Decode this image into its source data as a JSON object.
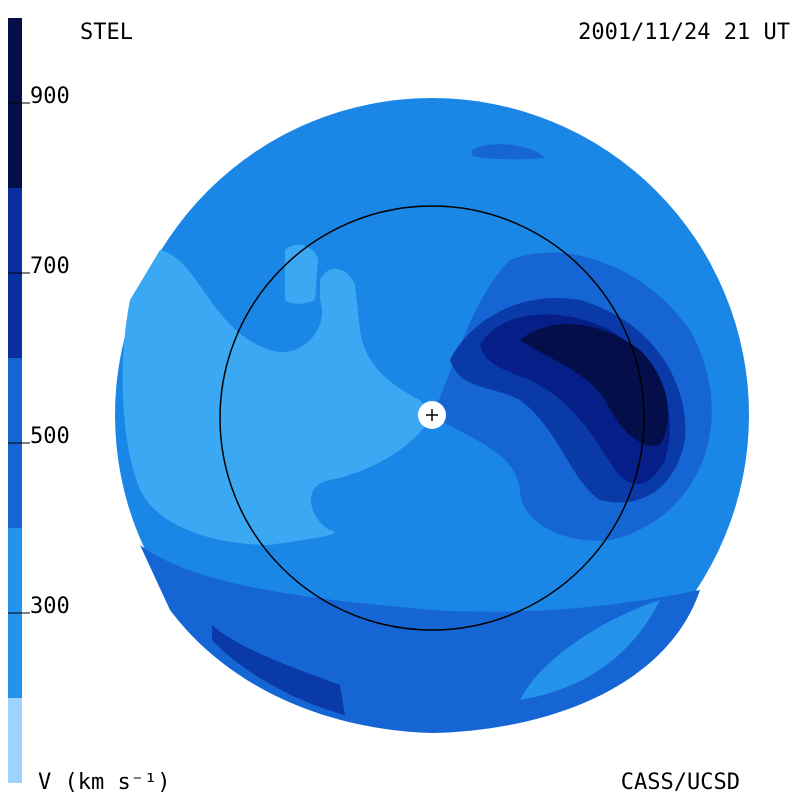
{
  "header": {
    "left": "STEL",
    "right": "2001/11/24 21 UT"
  },
  "footer": {
    "left": "V (km s⁻¹)",
    "right": "CASS/UCSD"
  },
  "colorbar": {
    "range": [
      100,
      1000
    ],
    "ticks": [
      300,
      500,
      700,
      900
    ],
    "bands": [
      {
        "from": 100,
        "to": 200,
        "color": "#9fd3ff"
      },
      {
        "from": 200,
        "to": 400,
        "color": "#2592ec"
      },
      {
        "from": 400,
        "to": 600,
        "color": "#1566d4"
      },
      {
        "from": 600,
        "to": 800,
        "color": "#0a2fa0"
      },
      {
        "from": 800,
        "to": 1000,
        "color": "#040f4a"
      }
    ]
  }
}
